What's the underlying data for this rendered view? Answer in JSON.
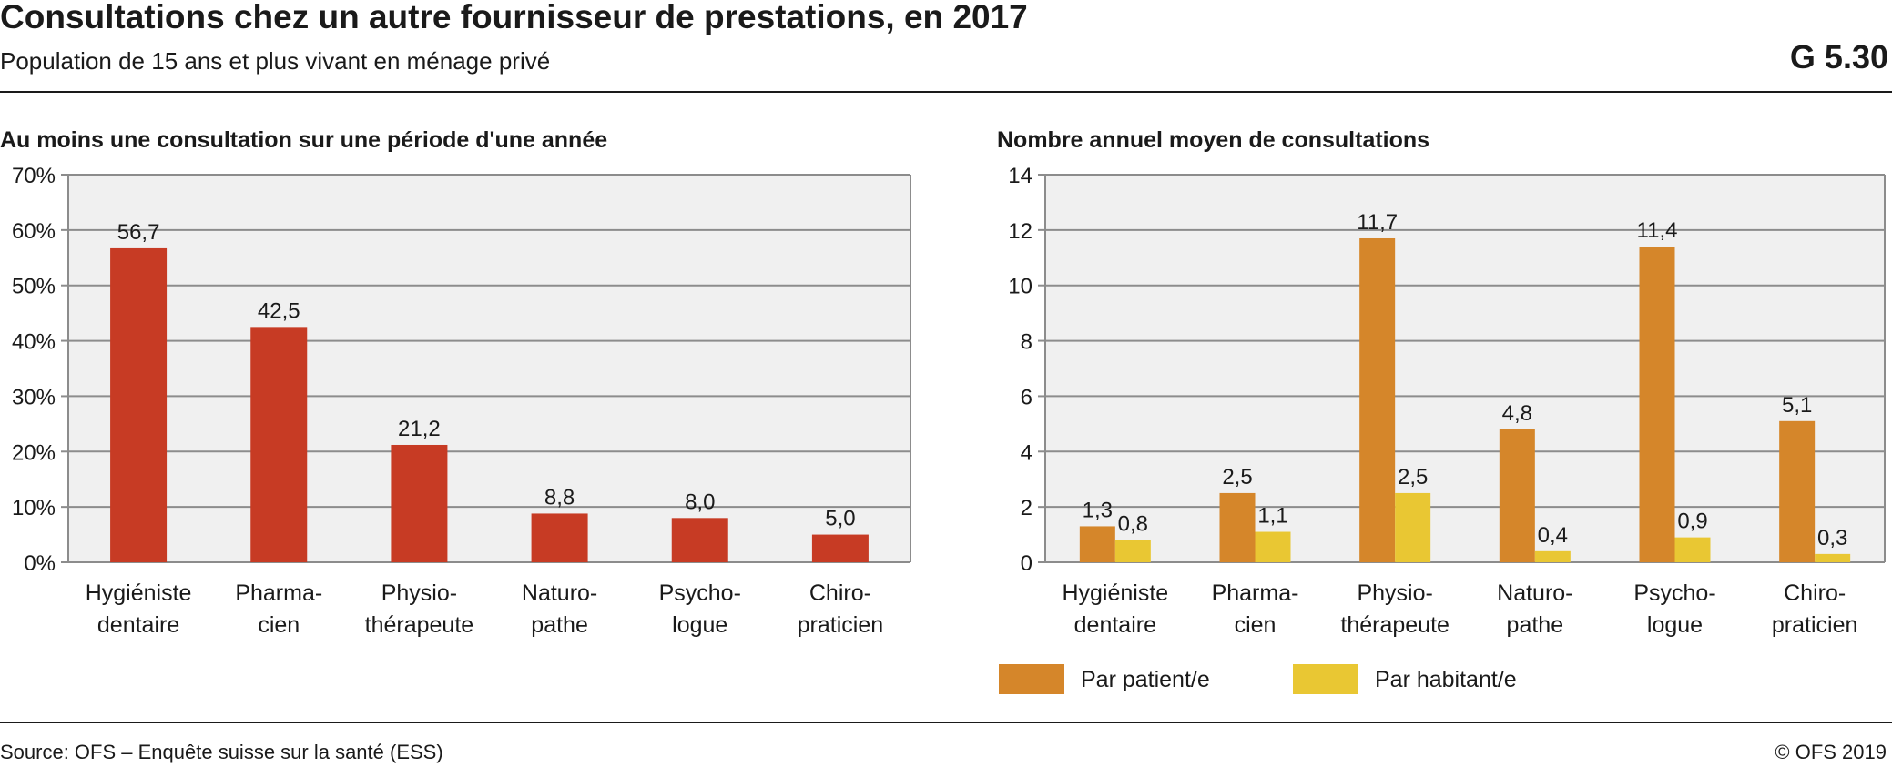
{
  "header": {
    "title": "Consultations chez un autre fournisseur de prestations, en 2017",
    "subtitle": "Population de 15 ans et plus vivant en ménage privé",
    "code": "G 5.30"
  },
  "footer": {
    "source": "Source: OFS – Enquête suisse sur la santé (ESS)",
    "copyright": "© OFS 2019"
  },
  "colors": {
    "red": "#c73b24",
    "orange": "#d5862a",
    "yellow": "#e9c733",
    "plot_bg": "#f0f0f0",
    "grid": "#8c8c8c"
  },
  "chart_data": [
    {
      "type": "bar",
      "title": "Au moins une consultation sur une période d'une année",
      "categories": [
        [
          "Hygiéniste",
          "dentaire"
        ],
        [
          "Pharma-",
          "cien"
        ],
        [
          "Physio-",
          "thérapeute"
        ],
        [
          "Naturo-",
          "pathe"
        ],
        [
          "Psycho-",
          "logue"
        ],
        [
          "Chiro-",
          "praticien"
        ]
      ],
      "series": [
        {
          "values": [
            56.7,
            42.5,
            21.2,
            8.8,
            8.0,
            5.0
          ],
          "labels": [
            "56,7",
            "42,5",
            "21,2",
            "8,8",
            "8,0",
            "5,0"
          ]
        }
      ],
      "ylim": [
        0,
        70
      ],
      "yticks": [
        0,
        10,
        20,
        30,
        40,
        50,
        60,
        70
      ],
      "ytick_labels": [
        "0%",
        "10%",
        "20%",
        "30%",
        "40%",
        "50%",
        "60%",
        "70%"
      ],
      "grid": true
    },
    {
      "type": "bar",
      "title": "Nombre annuel moyen de consultations",
      "categories": [
        [
          "Hygiéniste",
          "dentaire"
        ],
        [
          "Pharma-",
          "cien"
        ],
        [
          "Physio-",
          "thérapeute"
        ],
        [
          "Naturo-",
          "pathe"
        ],
        [
          "Psycho-",
          "logue"
        ],
        [
          "Chiro-",
          "praticien"
        ]
      ],
      "series": [
        {
          "name": "Par patient/e",
          "values": [
            1.3,
            2.5,
            11.7,
            4.8,
            11.4,
            5.1
          ],
          "labels": [
            "1,3",
            "2,5",
            "11,7",
            "4,8",
            "11,4",
            "5,1"
          ]
        },
        {
          "name": "Par habitant/e",
          "values": [
            0.8,
            1.1,
            2.5,
            0.4,
            0.9,
            0.3
          ],
          "labels": [
            "0,8",
            "1,1",
            "2,5",
            "0,4",
            "0,9",
            "0,3"
          ]
        }
      ],
      "ylim": [
        0,
        14
      ],
      "yticks": [
        0,
        2,
        4,
        6,
        8,
        10,
        12,
        14
      ],
      "ytick_labels": [
        "0",
        "2",
        "4",
        "6",
        "8",
        "10",
        "12",
        "14"
      ],
      "grid": true,
      "legend": "bottom"
    }
  ]
}
